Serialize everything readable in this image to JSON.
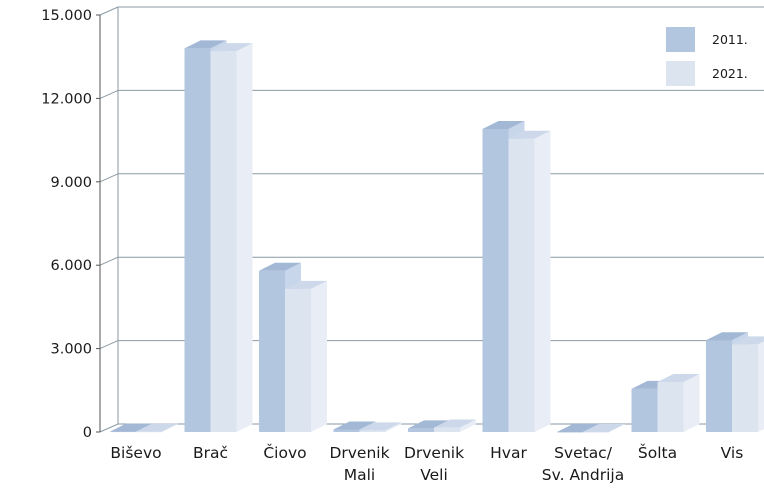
{
  "chart_data": {
    "type": "bar",
    "categories": [
      "Biševo",
      "Brač",
      "Čiovo",
      "Drvenik\nMali",
      "Drvenik\nVeli",
      "Hvar",
      "Svetac/\nSv. Andrija",
      "Šolta",
      "Vis"
    ],
    "series": [
      {
        "name": "2011.",
        "values": [
          15,
          13800,
          5800,
          90,
          130,
          10900,
          0,
          1550,
          3300
        ],
        "color": "#b3c6df",
        "top_color": "#a2b8d5",
        "side_color": "#c7d6ea"
      },
      {
        "name": "2021.",
        "values": [
          10,
          13700,
          5150,
          60,
          160,
          10550,
          0,
          1800,
          3150
        ],
        "color": "#dce4f0",
        "top_color": "#cdd9ea",
        "side_color": "#e9eef6"
      }
    ],
    "ylim": [
      0,
      15000
    ],
    "yticks": [
      0,
      3000,
      6000,
      9000,
      12000,
      15000
    ],
    "ytick_labels": [
      "0",
      "3.000",
      "6.000",
      "9.000",
      "12.000",
      "15.000"
    ],
    "grid": true,
    "legend_position": "top-right"
  }
}
